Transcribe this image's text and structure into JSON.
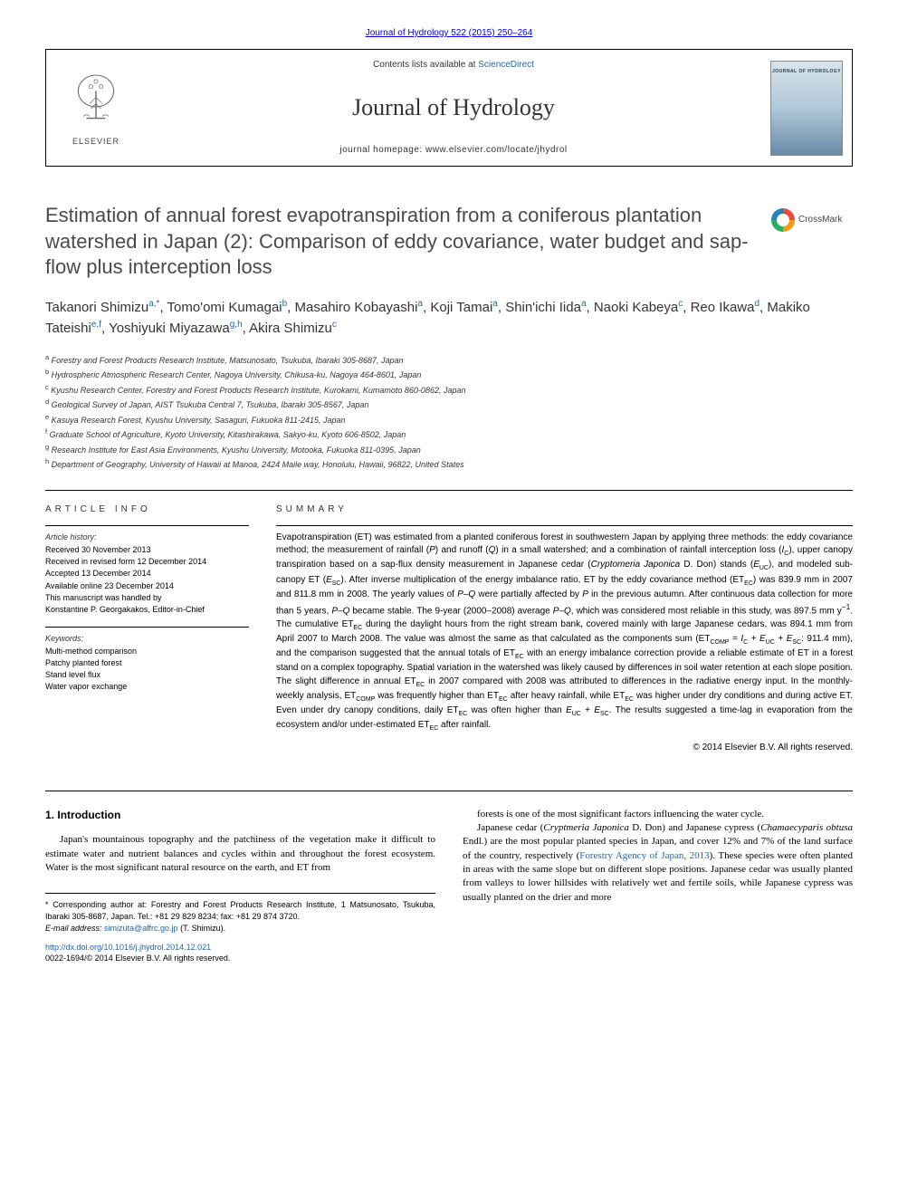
{
  "header": {
    "citation": "Journal of Hydrology 522 (2015) 250–264",
    "contents_prefix": "Contents lists available at ",
    "contents_link": "ScienceDirect",
    "journal_name": "Journal of Hydrology",
    "homepage_prefix": "journal homepage: ",
    "homepage_url": "www.elsevier.com/locate/jhydrol",
    "elsevier": "ELSEVIER",
    "cover_text": "JOURNAL OF HYDROLOGY",
    "colors": {
      "link": "#2266aa",
      "border": "#000000",
      "journal_name": "#333333"
    }
  },
  "crossmark": "CrossMark",
  "title": "Estimation of annual forest evapotranspiration from a coniferous plantation watershed in Japan (2): Comparison of eddy covariance, water budget and sap-flow plus interception loss",
  "authors_list": [
    {
      "name": "Takanori Shimizu",
      "sup": "a,*"
    },
    {
      "name": "Tomo'omi Kumagai",
      "sup": "b"
    },
    {
      "name": "Masahiro Kobayashi",
      "sup": "a"
    },
    {
      "name": "Koji Tamai",
      "sup": "a"
    },
    {
      "name": "Shin'ichi Iida",
      "sup": "a"
    },
    {
      "name": "Naoki Kabeya",
      "sup": "c"
    },
    {
      "name": "Reo Ikawa",
      "sup": "d"
    },
    {
      "name": "Makiko Tateishi",
      "sup": "e,f"
    },
    {
      "name": "Yoshiyuki Miyazawa",
      "sup": "g,h"
    },
    {
      "name": "Akira Shimizu",
      "sup": "c"
    }
  ],
  "affiliations": [
    {
      "key": "a",
      "text": "Forestry and Forest Products Research Institute, Matsunosato, Tsukuba, Ibaraki 305-8687, Japan"
    },
    {
      "key": "b",
      "text": "Hydrospheric Atmospheric Research Center, Nagoya University, Chikusa-ku, Nagoya 464-8601, Japan"
    },
    {
      "key": "c",
      "text": "Kyushu Research Center, Forestry and Forest Products Research Institute, Kurokami, Kumamoto 860-0862, Japan"
    },
    {
      "key": "d",
      "text": "Geological Survey of Japan, AIST Tsukuba Central 7, Tsukuba, Ibaraki 305-8567, Japan"
    },
    {
      "key": "e",
      "text": "Kasuya Research Forest, Kyushu University, Sasaguri, Fukuoka 811-2415, Japan"
    },
    {
      "key": "f",
      "text": "Graduate School of Agriculture, Kyoto University, Kitashirakawa, Sakyo-ku, Kyoto 606-8502, Japan"
    },
    {
      "key": "g",
      "text": "Research Institute for East Asia Environments, Kyushu University, Motooka, Fukuoka 811-0395, Japan"
    },
    {
      "key": "h",
      "text": "Department of Geography, University of Hawaii at Manoa, 2424 Maile way, Honolulu, Hawaii, 96822, United States"
    }
  ],
  "article_info": {
    "heading": "ARTICLE INFO",
    "history_heading": "Article history:",
    "history": [
      "Received 30 November 2013",
      "Received in revised form 12 December 2014",
      "Accepted 13 December 2014",
      "Available online 23 December 2014",
      "This manuscript was handled by",
      "Konstantine P. Georgakakos, Editor-in-Chief"
    ],
    "keywords_heading": "Keywords:",
    "keywords": [
      "Multi-method comparison",
      "Patchy planted forest",
      "Stand level flux",
      "Water vapor exchange"
    ]
  },
  "summary": {
    "heading": "SUMMARY",
    "text_html": "Evapotranspiration (ET) was estimated from a planted coniferous forest in southwestern Japan by applying three methods: the eddy covariance method; the measurement of rainfall (<i>P</i>) and runoff (<i>Q</i>) in a small watershed; and a combination of rainfall interception loss (<i>I</i><sub>C</sub>), upper canopy transpiration based on a sap-flux density measurement in Japanese cedar (<i>Cryptomeria Japonica</i> D. Don) stands (<i>E</i><sub>UC</sub>), and modeled sub-canopy ET (<i>E</i><sub>SC</sub>). After inverse multiplication of the energy imbalance ratio, ET by the eddy covariance method (ET<sub>EC</sub>) was 839.9 mm in 2007 and 811.8 mm in 2008. The yearly values of <i>P</i>–<i>Q</i> were partially affected by <i>P</i> in the previous autumn. After continuous data collection for more than 5 years, <i>P</i>–<i>Q</i> became stable. The 9-year (2000–2008) average <i>P</i>–<i>Q</i>, which was considered most reliable in this study, was 897.5 mm y<sup>−1</sup>. The cumulative ET<sub>EC</sub> during the daylight hours from the right stream bank, covered mainly with large Japanese cedars, was 894.1 mm from April 2007 to March 2008. The value was almost the same as that calculated as the components sum (ET<sub>COMP</sub> = <i>I</i><sub>C</sub> + <i>E</i><sub>UC</sub> + <i>E</i><sub>SC</sub>: 911.4 mm), and the comparison suggested that the annual totals of ET<sub>EC</sub> with an energy imbalance correction provide a reliable estimate of ET in a forest stand on a complex topography. Spatial variation in the watershed was likely caused by differences in soil water retention at each slope position. The slight difference in annual ET<sub>EC</sub> in 2007 compared with 2008 was attributed to differences in the radiative energy input. In the monthly-weekly analysis, ET<sub>COMP</sub> was frequently higher than ET<sub>EC</sub> after heavy rainfall, while ET<sub>EC</sub> was higher under dry conditions and during active ET. Even under dry canopy conditions, daily ET<sub>EC</sub> was often higher than <i>E</i><sub>UC</sub> + <i>E</i><sub>SC</sub>. The results suggested a time-lag in evaporation from the ecosystem and/or under-estimated ET<sub>EC</sub> after rainfall.",
    "copyright": "© 2014 Elsevier B.V. All rights reserved."
  },
  "body": {
    "section_number": "1.",
    "section_title": "Introduction",
    "left_paragraphs": [
      "Japan's mountainous topography and the patchiness of the vegetation make it difficult to estimate water and nutrient balances and cycles within and throughout the forest ecosystem. Water is the most significant natural resource on the earth, and ET from"
    ],
    "right_paragraphs_html": [
      "forests is one of the most significant factors influencing the water cycle.",
      "Japanese cedar (<i>Cryptmeria Japonica</i> D. Don) and Japanese cypress (<i>Chamaecyparis obtusa</i> Endl.) are the most popular planted species in Japan, and cover 12% and 7% of the land surface of the country, respectively (<a href='#' data-name='ref-link' data-interactable='true'>Forestry Agency of Japan, 2013</a>). These species were often planted in areas with the same slope but on different slope positions. Japanese cedar was usually planted from valleys to lower hillsides with relatively wet and fertile soils, while Japanese cypress was usually planted on the drier and more"
    ]
  },
  "footnotes": {
    "corresponding_html": "* Corresponding author at: Forestry and Forest Products Research Institute, 1 Matsunosato, Tsukuba, Ibaraki 305-8687, Japan. Tel.: +81 29 829 8234; fax: +81 29 874 3720.",
    "email_label": "E-mail address:",
    "email": "simizuta@affrc.go.jp",
    "email_suffix": "(T. Shimizu)."
  },
  "doi": {
    "url": "http://dx.doi.org/10.1016/j.jhydrol.2014.12.021",
    "issn_line": "0022-1694/© 2014 Elsevier B.V. All rights reserved."
  },
  "fonts": {
    "body": "Georgia, 'Times New Roman', serif",
    "sans": "Arial, Helvetica, sans-serif"
  }
}
